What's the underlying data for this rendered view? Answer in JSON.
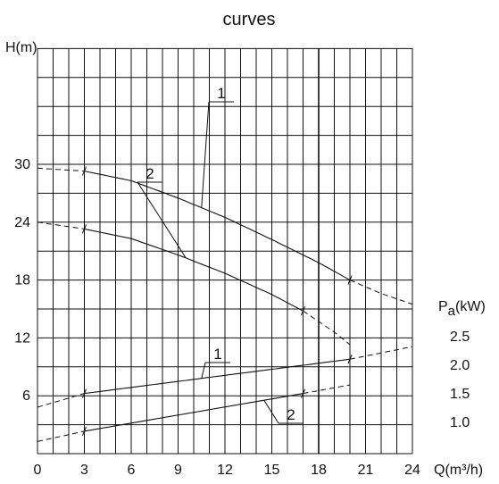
{
  "chart_data": {
    "type": "line",
    "title": "curves",
    "x_axis": {
      "label": "Q(m³/h)",
      "range": [
        0,
        24
      ],
      "ticks": [
        "0",
        "3",
        "6",
        "9",
        "12",
        "15",
        "18",
        "21",
        "24"
      ]
    },
    "left_axis": {
      "label": "H(m)",
      "range": [
        0,
        31
      ],
      "ticks": [
        "6",
        "12",
        "18",
        "24",
        "30"
      ]
    },
    "right_axis": {
      "label_main": "P",
      "label_sub": "a",
      "label_unit": "(kW)",
      "ticks": [
        "1.0",
        "1.5",
        "2.0",
        "2.5"
      ]
    },
    "grid": true,
    "series": [
      {
        "name": "1",
        "axis": "H",
        "solid_range": [
          3,
          20
        ],
        "points": [
          [
            0,
            29.6
          ],
          [
            3,
            29.3
          ],
          [
            6,
            28.3
          ],
          [
            9,
            26.5
          ],
          [
            12,
            24.5
          ],
          [
            15,
            22.2
          ],
          [
            18,
            19.8
          ],
          [
            20,
            18.0
          ],
          [
            22,
            16.6
          ],
          [
            24,
            15.5
          ]
        ]
      },
      {
        "name": "2",
        "axis": "H",
        "solid_range": [
          3,
          17
        ],
        "points": [
          [
            0,
            24.0
          ],
          [
            3,
            23.3
          ],
          [
            6,
            22.3
          ],
          [
            9,
            20.6
          ],
          [
            12,
            18.7
          ],
          [
            15,
            16.5
          ],
          [
            17,
            14.8
          ],
          [
            19,
            12.6
          ],
          [
            20,
            11.3
          ]
        ]
      },
      {
        "name": "1",
        "axis": "P",
        "solid_range": [
          3,
          20
        ],
        "points": [
          [
            0,
            1.25
          ],
          [
            3,
            1.49
          ],
          [
            20,
            2.09
          ],
          [
            24,
            2.31
          ]
        ]
      },
      {
        "name": "2",
        "axis": "P",
        "solid_range": [
          3,
          17
        ],
        "points": [
          [
            0,
            0.65
          ],
          [
            3,
            0.83
          ],
          [
            17,
            1.49
          ],
          [
            20,
            1.64
          ]
        ]
      }
    ]
  }
}
